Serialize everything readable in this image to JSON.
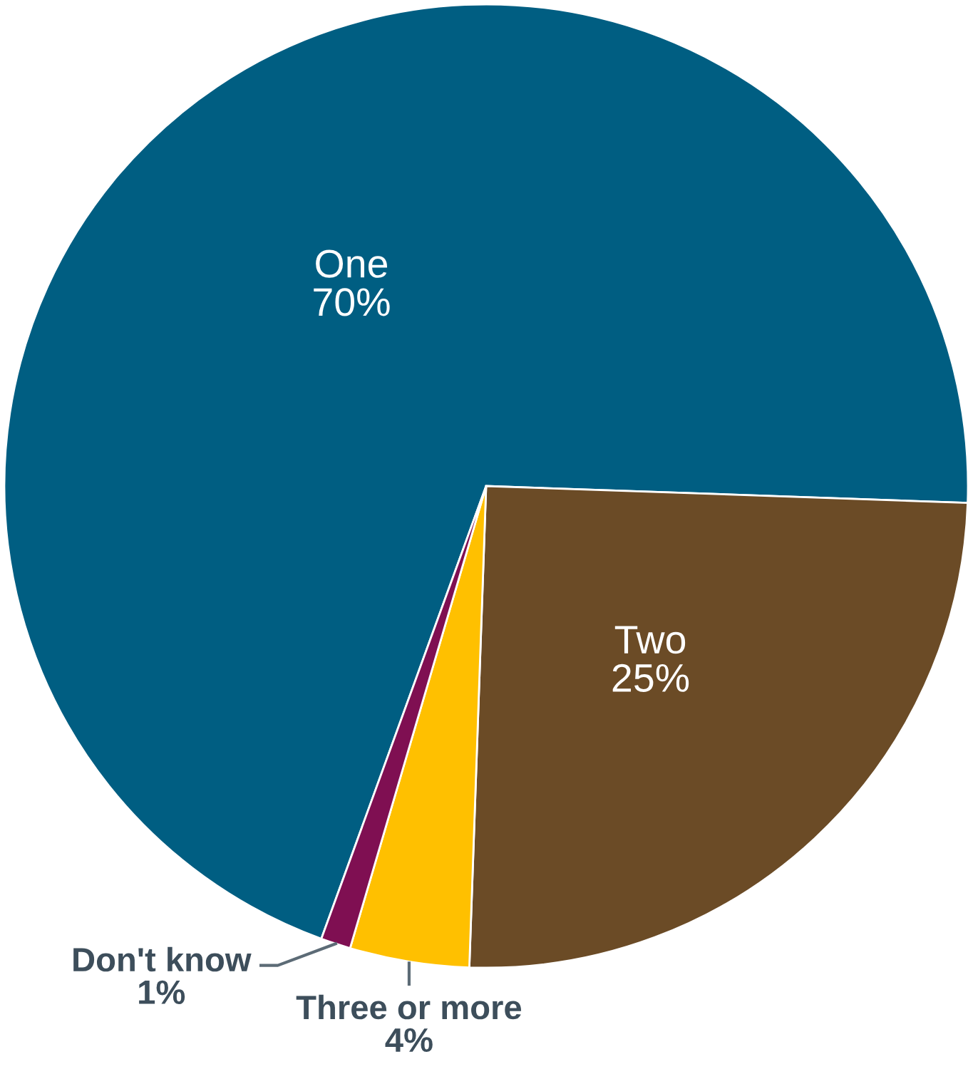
{
  "chart_data": {
    "type": "pie",
    "categories": [
      "One",
      "Two",
      "Three or more",
      "Don't know"
    ],
    "values": [
      70,
      25,
      4,
      1
    ],
    "colors": [
      "#005e82",
      "#6b4b26",
      "#ffc000",
      "#7f0f52"
    ],
    "value_labels": [
      "70%",
      "25%",
      "4%",
      "1%"
    ]
  }
}
